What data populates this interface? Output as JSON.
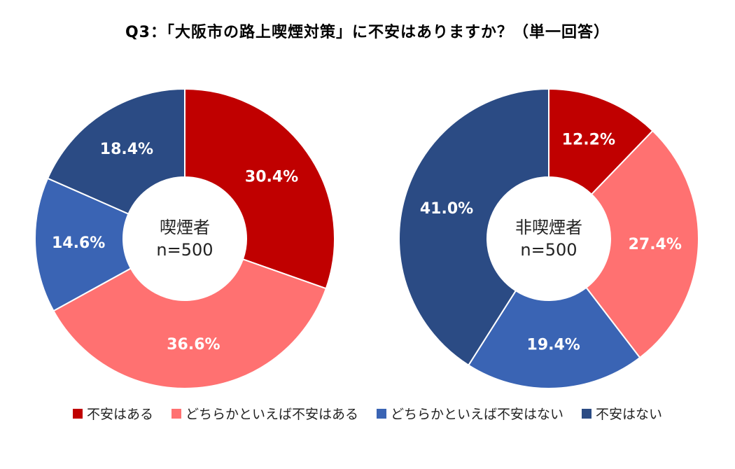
{
  "chart_data": {
    "type": "pie",
    "title": "Q3：「大阪市の路上喫煙対策」に不安はありますか？（単一回答）",
    "legend_position": "bottom",
    "categories": [
      "不安はある",
      "どちらかといえば不安はある",
      "どちらかといえば不安はない",
      "不安はない"
    ],
    "colors": [
      "#C00000",
      "#FF7171",
      "#3A64B4",
      "#2B4B84"
    ],
    "charts": [
      {
        "name": "smokers",
        "center_label": [
          "喫煙者",
          "n=500"
        ],
        "values": [
          30.4,
          36.6,
          14.6,
          18.4
        ],
        "data_labels": [
          "30.4%",
          "36.6%",
          "14.6%",
          "18.4%"
        ]
      },
      {
        "name": "non-smokers",
        "center_label": [
          "非喫煙者",
          "n=500"
        ],
        "values": [
          12.2,
          27.4,
          19.4,
          41.0
        ],
        "data_labels": [
          "12.2%",
          "27.4%",
          "19.4%",
          "41.0%"
        ]
      }
    ]
  }
}
